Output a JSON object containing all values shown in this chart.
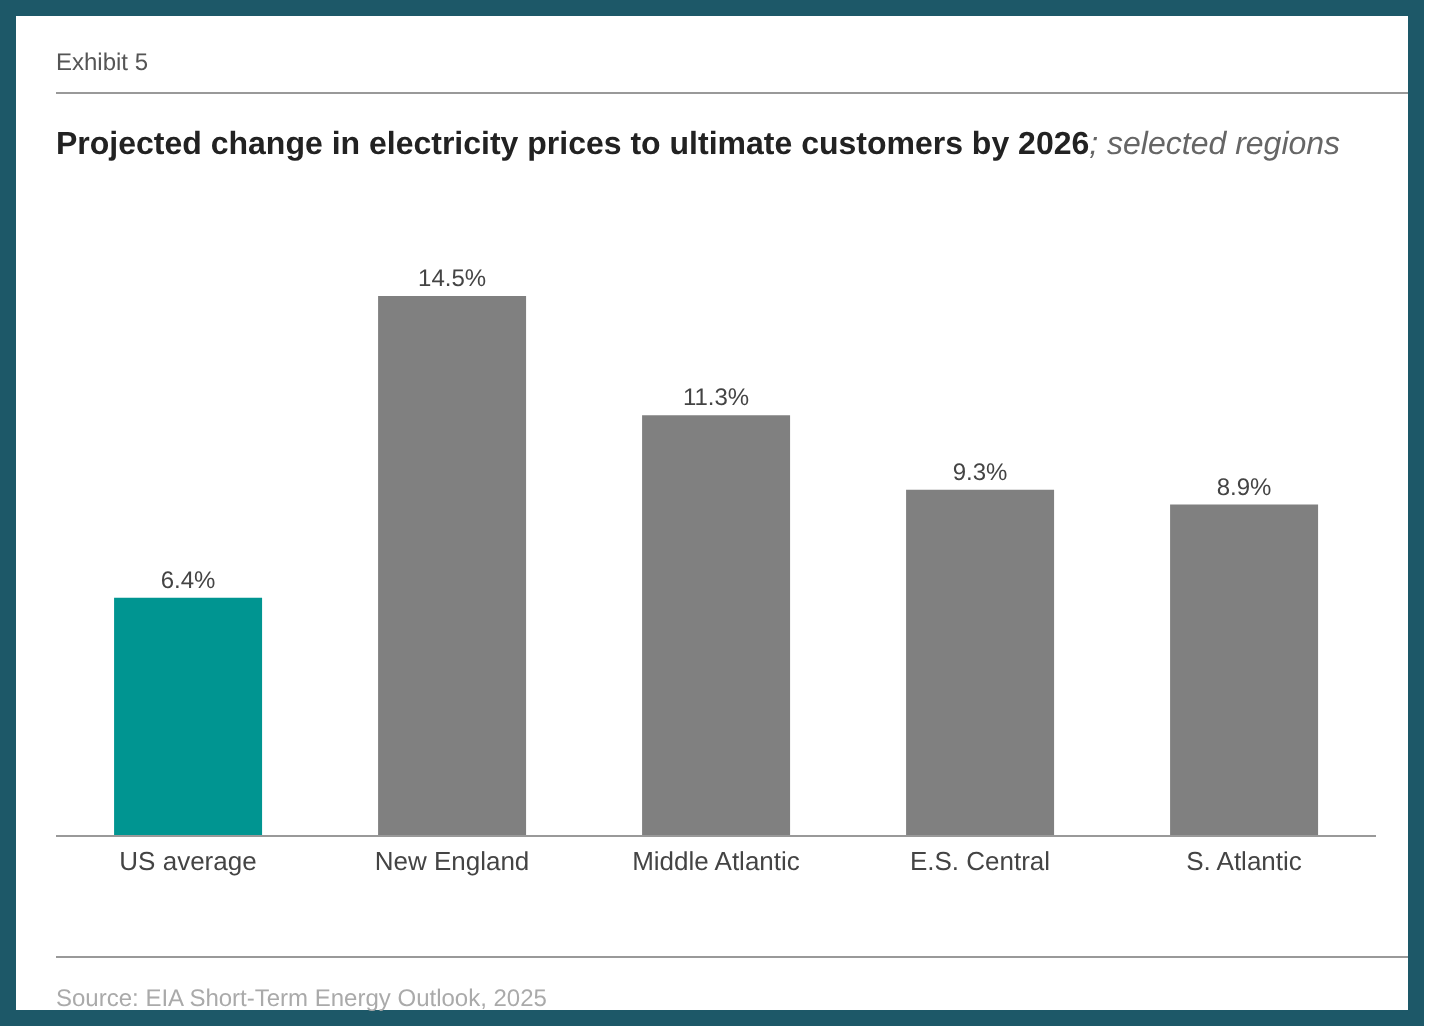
{
  "chart_data": {
    "type": "bar",
    "title": "Projected change in electricity prices to ultimate customers by 2026",
    "subtitle": "; selected regions",
    "categories": [
      "US average",
      "New England",
      "Middle Atlantic",
      "E.S. Central",
      "S. Atlantic"
    ],
    "values": [
      6.4,
      14.5,
      11.3,
      9.3,
      8.9
    ],
    "colors": [
      "#009591",
      "#808080",
      "#808080",
      "#808080",
      "#808080"
    ],
    "value_labels": [
      "6.4%",
      "14.5%",
      "11.3%",
      "9.3%",
      "8.9%"
    ],
    "annotations": [
      "Exhibit 5",
      "Source: EIA Short-Term Energy Outlook, 2025"
    ]
  }
}
